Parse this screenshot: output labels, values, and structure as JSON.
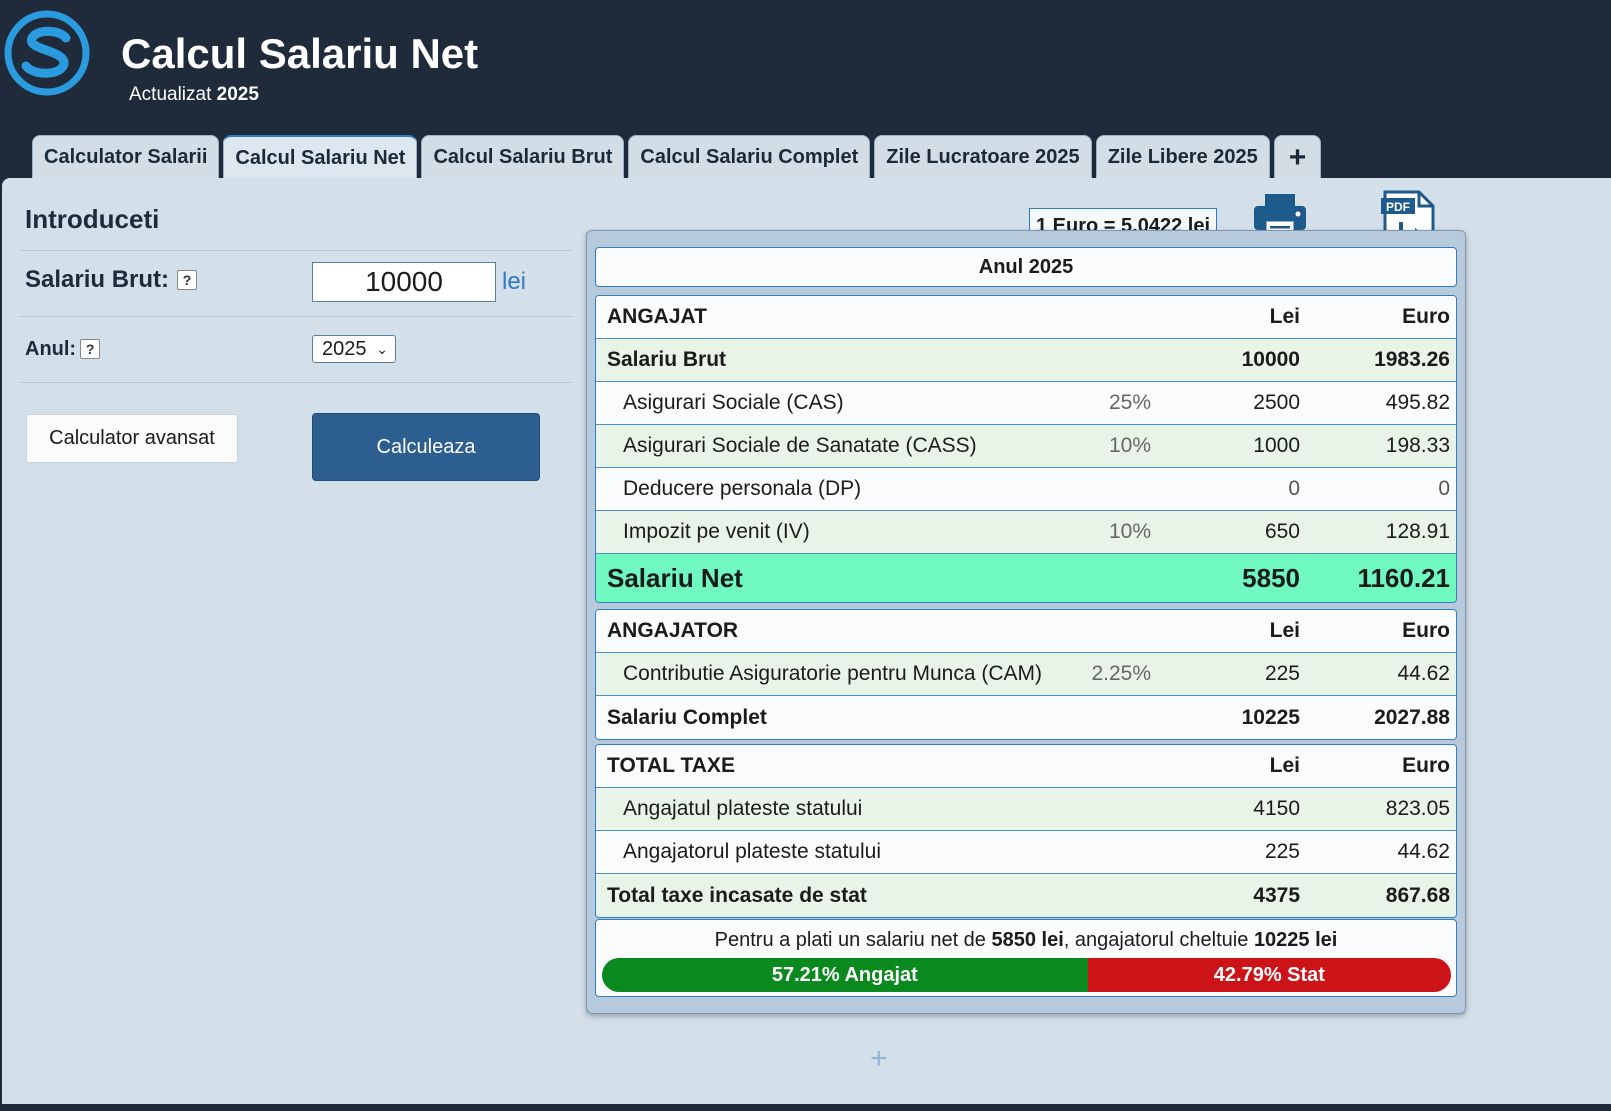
{
  "header": {
    "title": "Calcul Salariu Net",
    "updated_label": "Actualizat",
    "updated_year": "2025"
  },
  "tabs": [
    {
      "label": "Calculator Salarii",
      "active": false
    },
    {
      "label": "Calcul Salariu Net",
      "active": true
    },
    {
      "label": "Calcul Salariu Brut",
      "active": false
    },
    {
      "label": "Calcul Salariu Complet",
      "active": false
    },
    {
      "label": "Zile Lucratoare 2025",
      "active": false
    },
    {
      "label": "Zile Libere 2025",
      "active": false
    },
    {
      "label": "+",
      "active": false
    }
  ],
  "form": {
    "section_title": "Introduceti",
    "salary_label": "Salariu Brut:",
    "salary_value": "10000",
    "salary_unit": "lei",
    "help_glyph": "?",
    "year_label": "Anul:",
    "year_value": "2025",
    "advanced_button": "Calculator avansat",
    "calculate_button": "Calculeaza"
  },
  "exchange_rate": "1 Euro = 5.0422 lei",
  "icons": {
    "print": "print-icon",
    "pdf": "pdf-icon",
    "pdf_text": "PDF"
  },
  "result": {
    "year_heading": "Anul 2025",
    "angajat": {
      "header": {
        "label": "ANGAJAT",
        "lei": "Lei",
        "eur": "Euro"
      },
      "rows": [
        {
          "label": "Salariu Brut",
          "pct": "",
          "lei": "10000",
          "eur": "1983.26"
        },
        {
          "label": "Asigurari Sociale (CAS)",
          "pct": "25%",
          "lei": "2500",
          "eur": "495.82"
        },
        {
          "label": "Asigurari Sociale de Sanatate (CASS)",
          "pct": "10%",
          "lei": "1000",
          "eur": "198.33"
        },
        {
          "label": "Deducere personala (DP)",
          "pct": "",
          "lei": "0",
          "eur": "0"
        },
        {
          "label": "Impozit pe venit (IV)",
          "pct": "10%",
          "lei": "650",
          "eur": "128.91"
        }
      ],
      "net": {
        "label": "Salariu Net",
        "lei": "5850",
        "eur": "1160.21"
      }
    },
    "angajator": {
      "header": {
        "label": "ANGAJATOR",
        "lei": "Lei",
        "eur": "Euro"
      },
      "rows": [
        {
          "label": "Contributie Asiguratorie pentru Munca (CAM)",
          "pct": "2.25%",
          "lei": "225",
          "eur": "44.62"
        }
      ],
      "total": {
        "label": "Salariu Complet",
        "lei": "10225",
        "eur": "2027.88"
      }
    },
    "taxe": {
      "header": {
        "label": "TOTAL TAXE",
        "lei": "Lei",
        "eur": "Euro"
      },
      "rows": [
        {
          "label": "Angajatul plateste statului",
          "lei": "4150",
          "eur": "823.05"
        },
        {
          "label": "Angajatorul plateste statului",
          "lei": "225",
          "eur": "44.62"
        }
      ],
      "total": {
        "label": "Total taxe incasate de stat",
        "lei": "4375",
        "eur": "867.68"
      }
    },
    "summary": {
      "prefix": "Pentru a plati un salariu net de ",
      "net_amount": "5850 lei",
      "middle": ", angajatorul cheltuie ",
      "total_amount": "10225 lei",
      "employee_share": 57.21,
      "employee_label": "57.21% Angajat",
      "state_share": 42.79,
      "state_label": "42.79% Stat",
      "employee_color": "#0a8a1e",
      "state_color": "#cc1418"
    }
  },
  "add_glyph": "+"
}
